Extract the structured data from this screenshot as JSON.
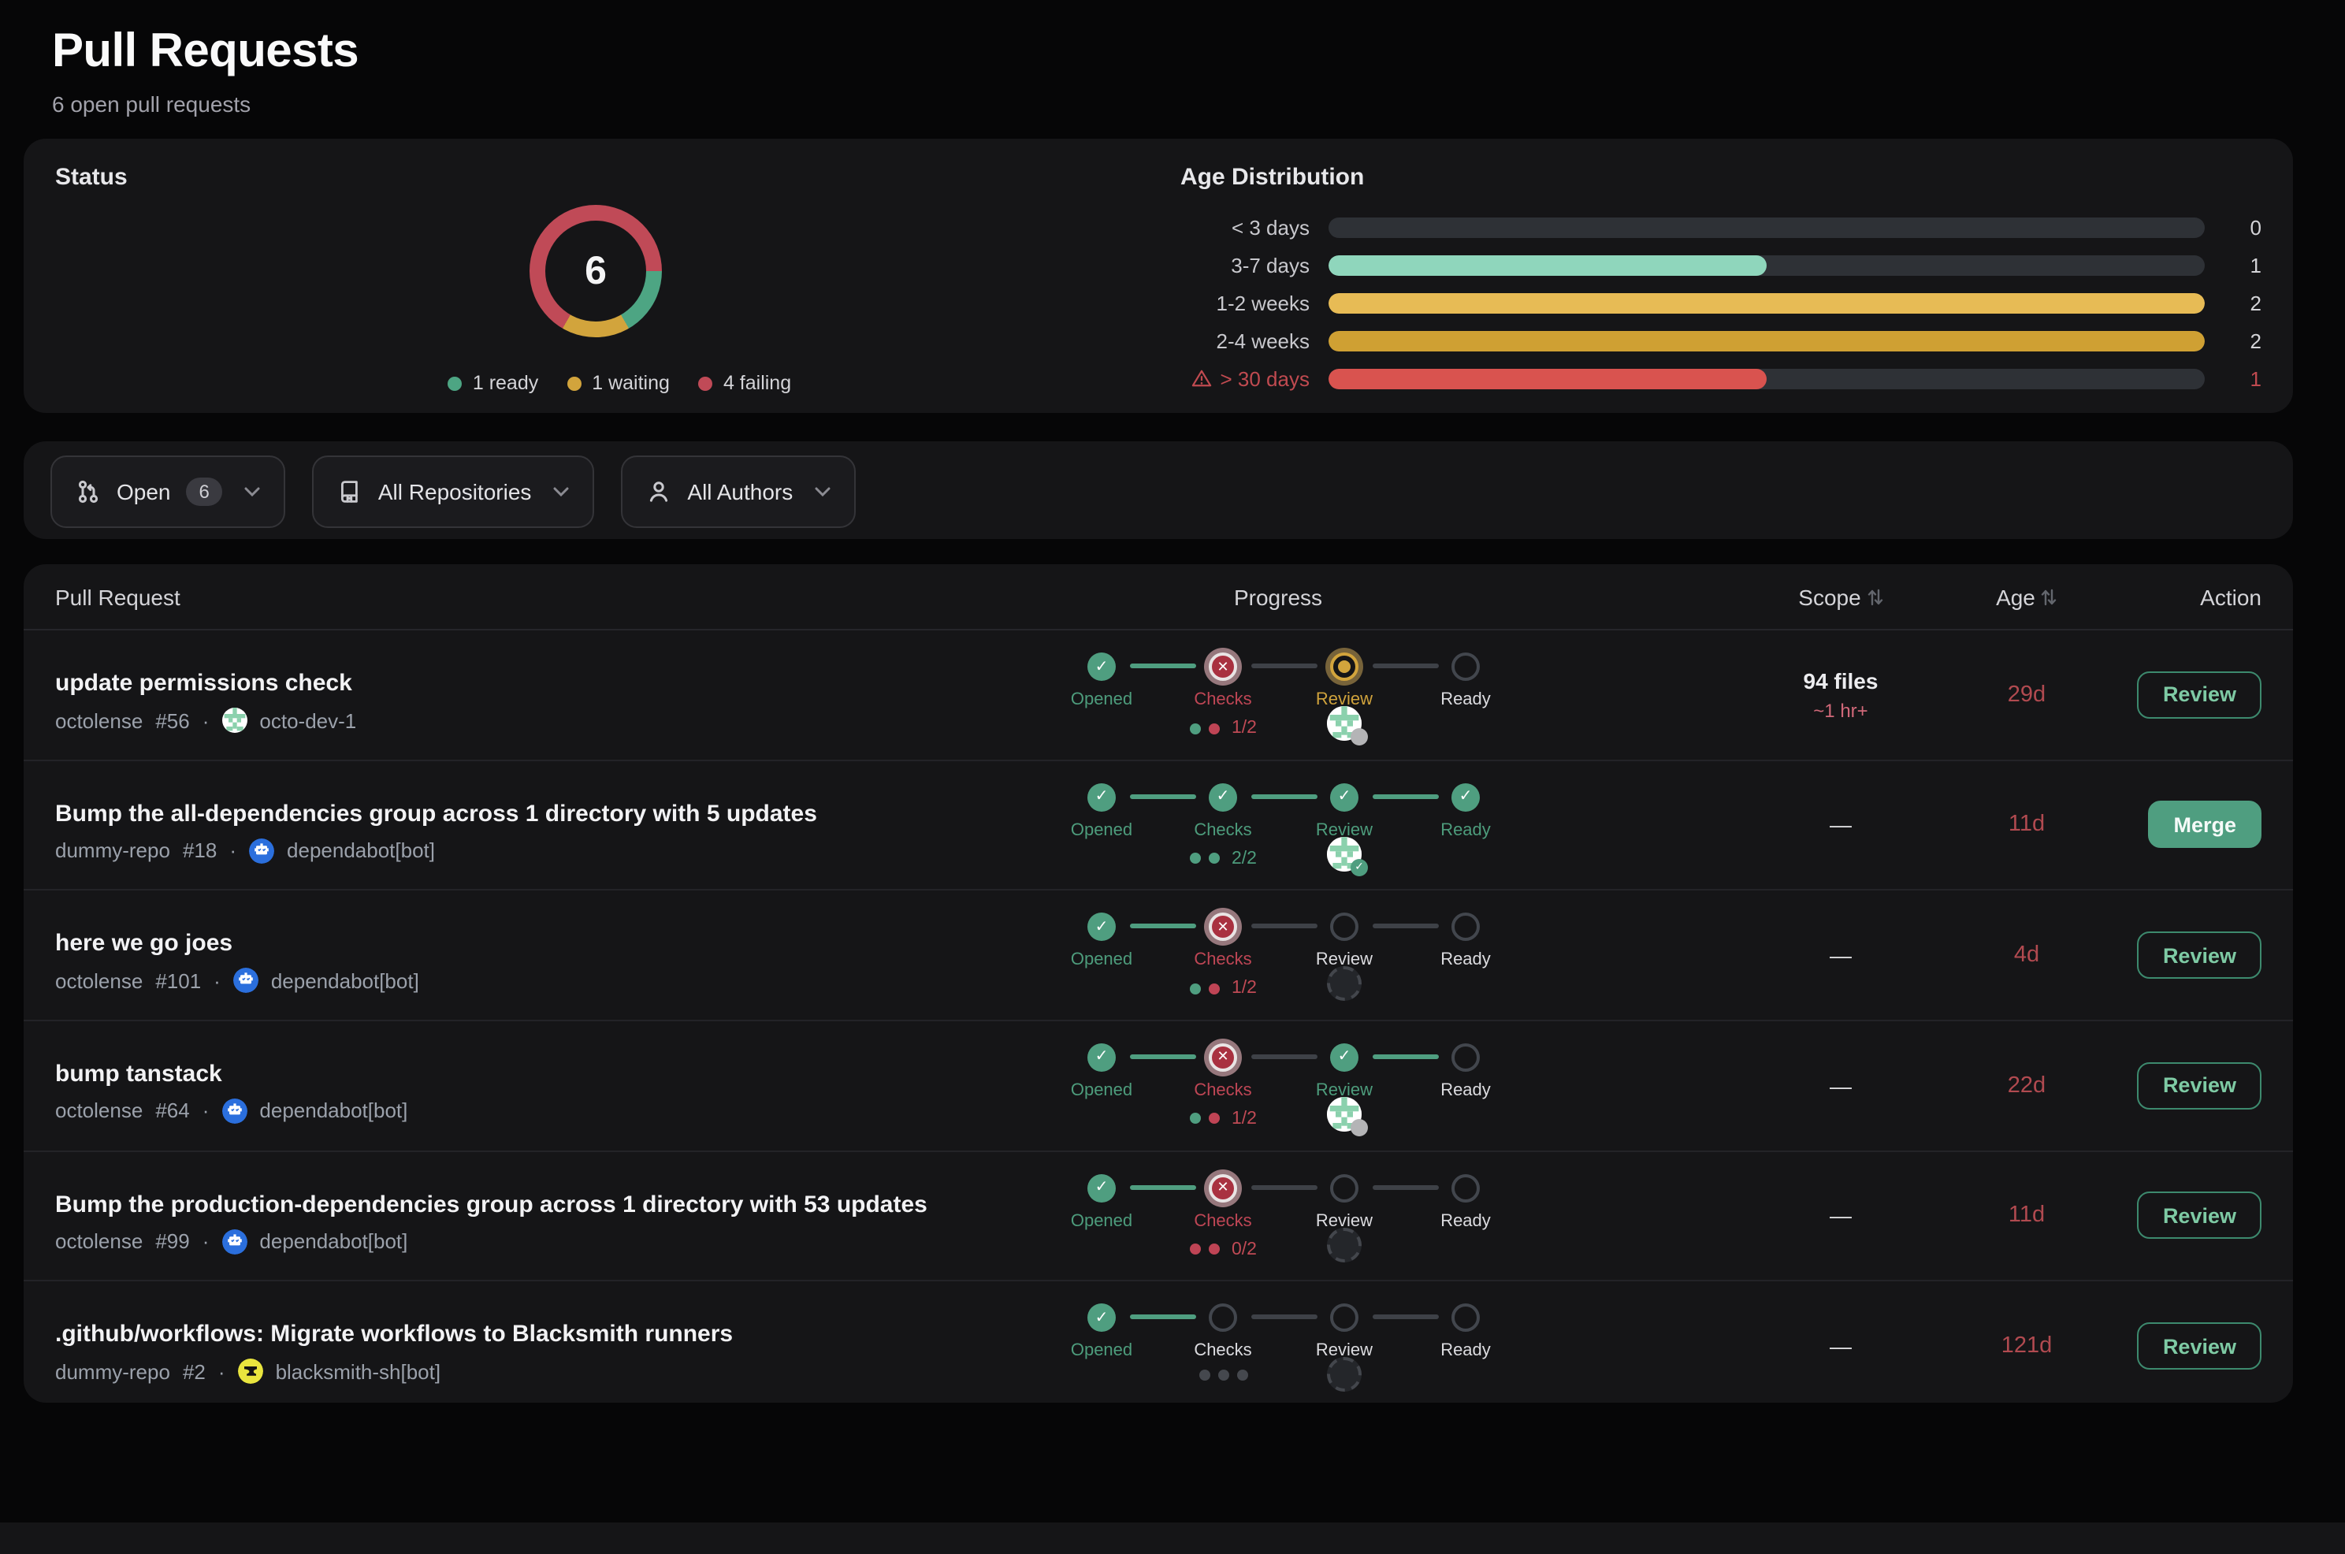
{
  "page": {
    "title": "Pull Requests",
    "subtitle": "6 open pull requests"
  },
  "status": {
    "title": "Status",
    "chart_data": {
      "type": "pie",
      "total_label": "6",
      "start_angle_deg": 90,
      "segments": [
        {
          "name": "ready",
          "label": "1 ready",
          "value": 1,
          "color": "#4da583"
        },
        {
          "name": "waiting",
          "label": "1 waiting",
          "value": 1,
          "color": "#d2a43c"
        },
        {
          "name": "failing",
          "label": "4 failing",
          "value": 4,
          "color": "#c04a57"
        }
      ]
    }
  },
  "age_distribution": {
    "title": "Age Distribution",
    "chart_data": {
      "type": "bar",
      "orientation": "horizontal",
      "categories": [
        "< 3 days",
        "3-7 days",
        "1-2 weeks",
        "2-4 weeks",
        "> 30 days"
      ],
      "values": [
        0,
        1,
        2,
        2,
        1
      ],
      "xlim": [
        0,
        2
      ],
      "bar_colors": [
        "#3a3d43",
        "#8fd6bc",
        "#e7bb55",
        "#cfa033",
        "#d9534f"
      ],
      "track_color": "#2e3136",
      "warning_row_index": 4,
      "warning_color": "#c04a50"
    }
  },
  "filters": [
    {
      "label": "Open",
      "badge": "6",
      "icon": "pull-request-icon"
    },
    {
      "label": "All Repositories",
      "icon": "repo-icon"
    },
    {
      "label": "All Authors",
      "icon": "person-icon"
    }
  ],
  "table": {
    "headers": {
      "pr": "Pull Request",
      "progress": "Progress",
      "scope": "Scope",
      "age": "Age",
      "action": "Action"
    },
    "step_labels": [
      "Opened",
      "Checks",
      "Review",
      "Ready"
    ],
    "rows": [
      {
        "title": "update permissions check",
        "repo": "octolense",
        "number": "#56",
        "author": "octo-dev-1",
        "avatar": "identicon",
        "steps": [
          "done",
          "failed",
          "active",
          "empty"
        ],
        "connectors": [
          "green",
          "dark",
          "dark"
        ],
        "check_dots": [
          "green",
          "red"
        ],
        "check_text": "1/2",
        "check_color": "red",
        "reviewer": "identicon",
        "reviewer_badge": "pending",
        "scope": "94 files",
        "scope_sub": "~1 hr+",
        "age": "29d",
        "action": "Review",
        "action_variant": "outline"
      },
      {
        "title": "Bump the all-dependencies group across 1 directory with 5 updates",
        "repo": "dummy-repo",
        "number": "#18",
        "author": "dependabot[bot]",
        "avatar": "dependabot",
        "steps": [
          "done",
          "done",
          "done",
          "done"
        ],
        "connectors": [
          "green",
          "green",
          "green"
        ],
        "check_dots": [
          "green",
          "green"
        ],
        "check_text": "2/2",
        "check_color": "green",
        "reviewer": "identicon",
        "reviewer_badge": "approved",
        "scope": "—",
        "scope_sub": "",
        "age": "11d",
        "action": "Merge",
        "action_variant": "solid"
      },
      {
        "title": "here we go joes",
        "repo": "octolense",
        "number": "#101",
        "author": "dependabot[bot]",
        "avatar": "dependabot",
        "steps": [
          "done",
          "failed",
          "empty",
          "empty"
        ],
        "connectors": [
          "green",
          "dark",
          "dark"
        ],
        "check_dots": [
          "green",
          "red"
        ],
        "check_text": "1/2",
        "check_color": "red",
        "reviewer": "placeholder",
        "reviewer_badge": "",
        "scope": "—",
        "scope_sub": "",
        "age": "4d",
        "action": "Review",
        "action_variant": "outline"
      },
      {
        "title": "bump tanstack",
        "repo": "octolense",
        "number": "#64",
        "author": "dependabot[bot]",
        "avatar": "dependabot",
        "steps": [
          "done",
          "failed",
          "done",
          "empty"
        ],
        "connectors": [
          "green",
          "dark",
          "green"
        ],
        "check_dots": [
          "green",
          "red"
        ],
        "check_text": "1/2",
        "check_color": "red",
        "reviewer": "identicon",
        "reviewer_badge": "pending",
        "scope": "—",
        "scope_sub": "",
        "age": "22d",
        "action": "Review",
        "action_variant": "outline"
      },
      {
        "title": "Bump the production-dependencies group across 1 directory with 53 updates",
        "repo": "octolense",
        "number": "#99",
        "author": "dependabot[bot]",
        "avatar": "dependabot",
        "steps": [
          "done",
          "failed",
          "empty",
          "empty"
        ],
        "connectors": [
          "green",
          "dark",
          "dark"
        ],
        "check_dots": [
          "red",
          "red"
        ],
        "check_text": "0/2",
        "check_color": "red",
        "reviewer": "placeholder",
        "reviewer_badge": "",
        "scope": "—",
        "scope_sub": "",
        "age": "11d",
        "action": "Review",
        "action_variant": "outline"
      },
      {
        "title": ".github/workflows: Migrate workflows to Blacksmith runners",
        "repo": "dummy-repo",
        "number": "#2",
        "author": "blacksmith-sh[bot]",
        "avatar": "blacksmith",
        "steps": [
          "done",
          "empty",
          "empty",
          "empty"
        ],
        "connectors": [
          "green",
          "dark",
          "dark"
        ],
        "check_dots": [
          "gray",
          "gray",
          "gray"
        ],
        "check_text": "",
        "check_color": "",
        "reviewer": "placeholder",
        "reviewer_badge": "",
        "scope": "—",
        "scope_sub": "",
        "age": "121d",
        "action": "Review",
        "action_variant": "outline"
      }
    ]
  }
}
